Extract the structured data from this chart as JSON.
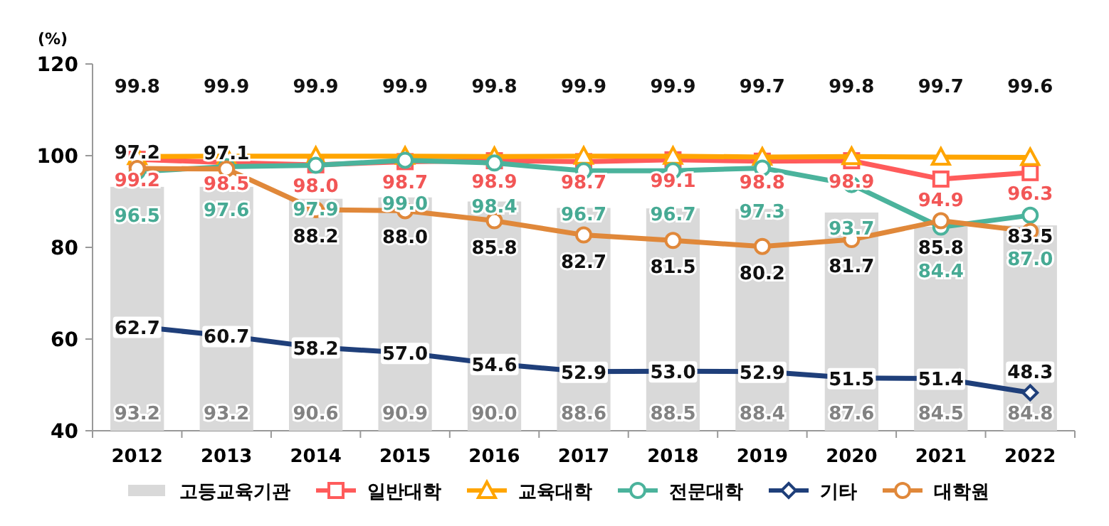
{
  "chart_data": {
    "type": "bar",
    "ylabel": "(%)",
    "categories": [
      "2012",
      "2013",
      "2014",
      "2015",
      "2016",
      "2017",
      "2018",
      "2019",
      "2020",
      "2021",
      "2022"
    ],
    "ylim": [
      40,
      120
    ],
    "yticks": [
      40,
      60,
      80,
      100,
      120
    ],
    "grid": false,
    "legend": "bottom",
    "series": [
      {
        "name": "고등교육기관",
        "color": "#d9d9d9",
        "values": [
          93.2,
          93.2,
          90.6,
          90.9,
          90.0,
          88.6,
          88.5,
          88.4,
          87.6,
          84.5,
          84.8
        ],
        "value_labels": [
          "93.2",
          "93.2",
          "90.6",
          "90.9",
          "90.0",
          "88.6",
          "88.5",
          "88.4",
          "87.6",
          "84.5",
          "84.8"
        ]
      },
      {
        "name": "일반대학",
        "type": "line",
        "marker": "square",
        "color": "#ff5b5b",
        "values": [
          99.2,
          98.5,
          98.0,
          98.7,
          98.9,
          98.7,
          99.1,
          98.8,
          98.9,
          94.9,
          96.3
        ],
        "value_labels": [
          "99.2",
          "98.5",
          "98.0",
          "98.7",
          "98.9",
          "98.7",
          "99.1",
          "98.8",
          "98.9",
          "94.9",
          "96.3"
        ]
      },
      {
        "name": "교육대학",
        "type": "line",
        "marker": "triangle",
        "color": "#ffa500",
        "values": [
          99.8,
          99.9,
          99.9,
          99.9,
          99.8,
          99.9,
          99.9,
          99.7,
          99.8,
          99.7,
          99.6
        ],
        "value_labels": [
          "99.8",
          "99.9",
          "99.9",
          "99.9",
          "99.8",
          "99.9",
          "99.9",
          "99.7",
          "99.8",
          "99.7",
          "99.6"
        ]
      },
      {
        "name": "전문대학",
        "type": "line",
        "marker": "circle",
        "color": "#4bb39c",
        "values": [
          96.5,
          97.6,
          97.9,
          99.0,
          98.4,
          96.7,
          96.7,
          97.3,
          93.7,
          84.4,
          87.0
        ],
        "value_labels": [
          "96.5",
          "97.6",
          "97.9",
          "99.0",
          "98.4",
          "96.7",
          "96.7",
          "97.3",
          "93.7",
          "84.4",
          "87.0"
        ]
      },
      {
        "name": "기타",
        "type": "line",
        "marker": "diamond",
        "color": "#1f3f7a",
        "values": [
          62.7,
          60.7,
          58.2,
          57.0,
          54.6,
          52.9,
          53.0,
          52.9,
          51.5,
          51.4,
          48.3
        ],
        "value_labels": [
          "62.7",
          "60.7",
          "58.2",
          "57.0",
          "54.6",
          "52.9",
          "53.0",
          "52.9",
          "51.5",
          "51.4",
          "48.3"
        ]
      },
      {
        "name": "대학원",
        "type": "line",
        "marker": "circle",
        "color": "#e0883a",
        "values": [
          97.2,
          97.1,
          88.2,
          88.0,
          85.8,
          82.7,
          81.5,
          80.2,
          81.7,
          85.8,
          83.5
        ],
        "value_labels": [
          "97.2",
          "97.1",
          "88.2",
          "88.0",
          "85.8",
          "82.7",
          "81.5",
          "80.2",
          "81.7",
          "85.8",
          "83.5"
        ]
      }
    ]
  }
}
